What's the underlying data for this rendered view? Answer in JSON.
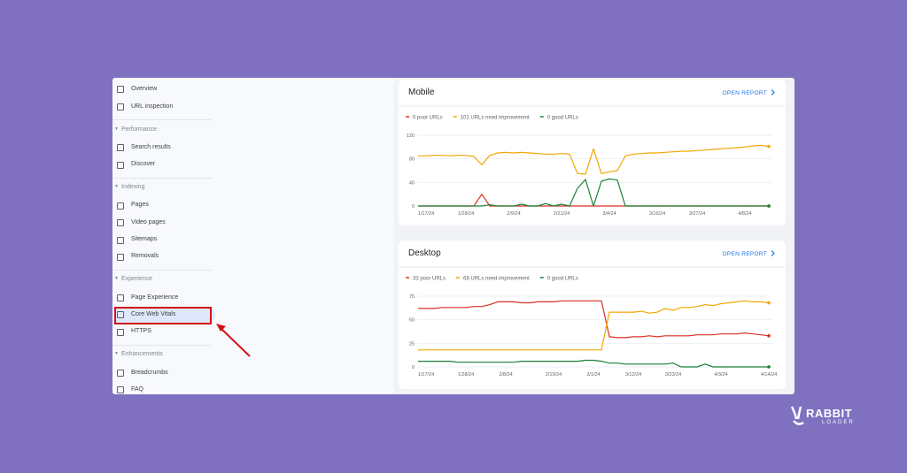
{
  "sidebar": {
    "top": [
      {
        "label": "Overview"
      },
      {
        "label": "URL inspection"
      }
    ],
    "sections": [
      {
        "title": "Performance",
        "items": [
          {
            "label": "Search results"
          },
          {
            "label": "Discover"
          }
        ]
      },
      {
        "title": "Indexing",
        "items": [
          {
            "label": "Pages"
          },
          {
            "label": "Video pages"
          },
          {
            "label": "Sitemaps"
          },
          {
            "label": "Removals"
          }
        ]
      },
      {
        "title": "Experience",
        "items": [
          {
            "label": "Page Experience"
          },
          {
            "label": "Core Web Vitals",
            "selected": true
          },
          {
            "label": "HTTPS"
          }
        ]
      },
      {
        "title": "Enhancements",
        "items": [
          {
            "label": "Breadcrumbs"
          },
          {
            "label": "FAQ"
          }
        ]
      }
    ]
  },
  "chart_data": [
    {
      "type": "line",
      "title": "Mobile",
      "link": "OPEN REPORT",
      "grid": true,
      "ylim": [
        0,
        120
      ],
      "yticks": [
        0,
        40,
        80,
        120
      ],
      "xlim": [
        0,
        44
      ],
      "xticks": [
        {
          "value": 1,
          "label": "1/17/24"
        },
        {
          "value": 6,
          "label": "1/28/24"
        },
        {
          "value": 12,
          "label": "2/9/24"
        },
        {
          "value": 18,
          "label": "2/21/24"
        },
        {
          "value": 24,
          "label": "3/4/24"
        },
        {
          "value": 30,
          "label": "3/16/24"
        },
        {
          "value": 35,
          "label": "3/27/24"
        },
        {
          "value": 41,
          "label": "4/8/24"
        }
      ],
      "series": [
        {
          "name": "0 poor URLs",
          "color": "#d93025",
          "values": [
            0,
            0,
            0,
            0,
            0,
            0,
            0,
            0,
            20,
            0,
            0,
            0,
            0,
            0,
            0,
            0,
            0,
            0,
            0,
            0,
            0,
            0,
            0,
            0,
            0,
            0,
            0,
            0,
            0,
            0,
            0,
            0,
            0,
            0,
            0,
            0,
            0,
            0,
            0,
            0,
            0,
            0,
            0,
            0,
            0
          ]
        },
        {
          "name": "101 URLs need improvement",
          "color": "#f2a600",
          "values": [
            85,
            85,
            86,
            86,
            85,
            86,
            86,
            84,
            70,
            86,
            90,
            91,
            90,
            91,
            90,
            89,
            88,
            88,
            89,
            88,
            55,
            54,
            97,
            55,
            58,
            60,
            85,
            88,
            89,
            90,
            90,
            91,
            92,
            93,
            93,
            94,
            95,
            96,
            97,
            98,
            99,
            100,
            102,
            103,
            101
          ]
        },
        {
          "name": "0 good URLs",
          "color": "#188038",
          "values": [
            0,
            0,
            0,
            0,
            0,
            0,
            0,
            0,
            0,
            2,
            0,
            0,
            0,
            3,
            0,
            0,
            4,
            0,
            3,
            0,
            30,
            45,
            0,
            42,
            46,
            44,
            0,
            0,
            0,
            0,
            0,
            0,
            0,
            0,
            0,
            0,
            0,
            0,
            0,
            0,
            0,
            0,
            0,
            0,
            0
          ]
        }
      ]
    },
    {
      "type": "line",
      "title": "Desktop",
      "link": "OPEN REPORT",
      "grid": true,
      "ylim": [
        0,
        75
      ],
      "yticks": [
        0,
        25,
        50,
        75
      ],
      "xlim": [
        0,
        44
      ],
      "xticks": [
        {
          "value": 1,
          "label": "1/17/24"
        },
        {
          "value": 6,
          "label": "1/28/24"
        },
        {
          "value": 11,
          "label": "2/8/24"
        },
        {
          "value": 17,
          "label": "2/19/24"
        },
        {
          "value": 22,
          "label": "3/1/24"
        },
        {
          "value": 27,
          "label": "3/12/24"
        },
        {
          "value": 32,
          "label": "3/23/24"
        },
        {
          "value": 38,
          "label": "4/3/24"
        },
        {
          "value": 44,
          "label": "4/14/24"
        }
      ],
      "series": [
        {
          "name": "33 poor URLs",
          "color": "#d93025",
          "values": [
            62,
            62,
            62,
            63,
            63,
            63,
            63,
            64,
            64,
            66,
            69,
            69,
            69,
            68,
            68,
            69,
            69,
            69,
            70,
            70,
            70,
            70,
            70,
            70,
            32,
            31,
            31,
            32,
            32,
            33,
            32,
            33,
            33,
            33,
            33,
            34,
            34,
            34,
            35,
            35,
            35,
            36,
            35,
            34,
            33
          ]
        },
        {
          "name": "68 URLs need improvement",
          "color": "#f2a600",
          "values": [
            18,
            18,
            18,
            18,
            18,
            18,
            18,
            18,
            18,
            18,
            18,
            18,
            18,
            18,
            18,
            18,
            18,
            18,
            18,
            18,
            18,
            18,
            18,
            18,
            58,
            58,
            58,
            58,
            59,
            57,
            58,
            62,
            60,
            63,
            63,
            64,
            66,
            65,
            67,
            68,
            69,
            70,
            69,
            69,
            68
          ]
        },
        {
          "name": "0 good URLs",
          "color": "#188038",
          "values": [
            6,
            6,
            6,
            6,
            6,
            5,
            5,
            5,
            5,
            5,
            5,
            5,
            5,
            6,
            6,
            6,
            6,
            6,
            6,
            6,
            6,
            7,
            7,
            6,
            4,
            4,
            3,
            3,
            3,
            3,
            3,
            3,
            4,
            0,
            0,
            0,
            3,
            0,
            0,
            0,
            0,
            0,
            0,
            0,
            0
          ]
        }
      ]
    }
  ],
  "brand": {
    "name": "RABBIT",
    "sub": "LOADER"
  }
}
